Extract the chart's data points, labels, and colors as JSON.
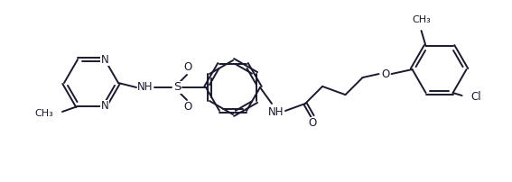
{
  "bg_color": "#ffffff",
  "line_color": "#1a1a2e",
  "line_width": 1.4,
  "font_size": 8.5,
  "figsize": [
    5.67,
    2.02
  ],
  "dpi": 100,
  "xlim": [
    0,
    5.67
  ],
  "ylim": [
    0,
    2.02
  ]
}
